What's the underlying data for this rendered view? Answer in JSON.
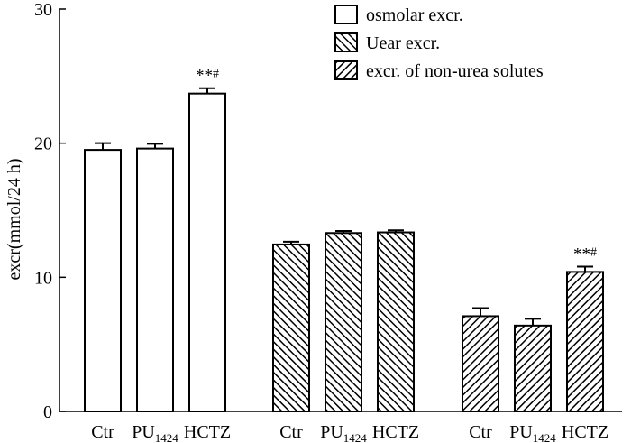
{
  "chart_data": {
    "type": "bar",
    "ylabel": "excr(mmol/24 h)",
    "ylim": [
      0,
      30
    ],
    "yticks": [
      0,
      10,
      20,
      30
    ],
    "grid": false,
    "legend_position": "top-right",
    "groups": [
      {
        "name": "",
        "series": "osmolar excr.",
        "bars": [
          {
            "label": "Ctr",
            "value": 19.5,
            "error": 0.5,
            "annotation": ""
          },
          {
            "label": "PU",
            "sub": "1424",
            "value": 19.6,
            "error": 0.35,
            "annotation": ""
          },
          {
            "label": "HCTZ",
            "value": 23.7,
            "error": 0.4,
            "annotation": "**#"
          }
        ]
      },
      {
        "name": "",
        "series": "Uear excr.",
        "bars": [
          {
            "label": "Ctr",
            "value": 12.45,
            "error": 0.2,
            "annotation": ""
          },
          {
            "label": "PU",
            "sub": "1424",
            "value": 13.3,
            "error": 0.15,
            "annotation": ""
          },
          {
            "label": "HCTZ",
            "value": 13.35,
            "error": 0.15,
            "annotation": ""
          }
        ]
      },
      {
        "name": "",
        "series": "excr. of non-urea solutes",
        "bars": [
          {
            "label": "Ctr",
            "value": 7.1,
            "error": 0.6,
            "annotation": ""
          },
          {
            "label": "PU",
            "sub": "1424",
            "value": 6.4,
            "error": 0.5,
            "annotation": ""
          },
          {
            "label": "HCTZ",
            "value": 10.4,
            "error": 0.4,
            "annotation": "**#"
          }
        ]
      }
    ],
    "legend": [
      {
        "label": "osmolar excr.",
        "pattern": "none"
      },
      {
        "label": "Uear excr.",
        "pattern": "backslash"
      },
      {
        "label": "excr. of non-urea solutes",
        "pattern": "slash"
      }
    ]
  }
}
